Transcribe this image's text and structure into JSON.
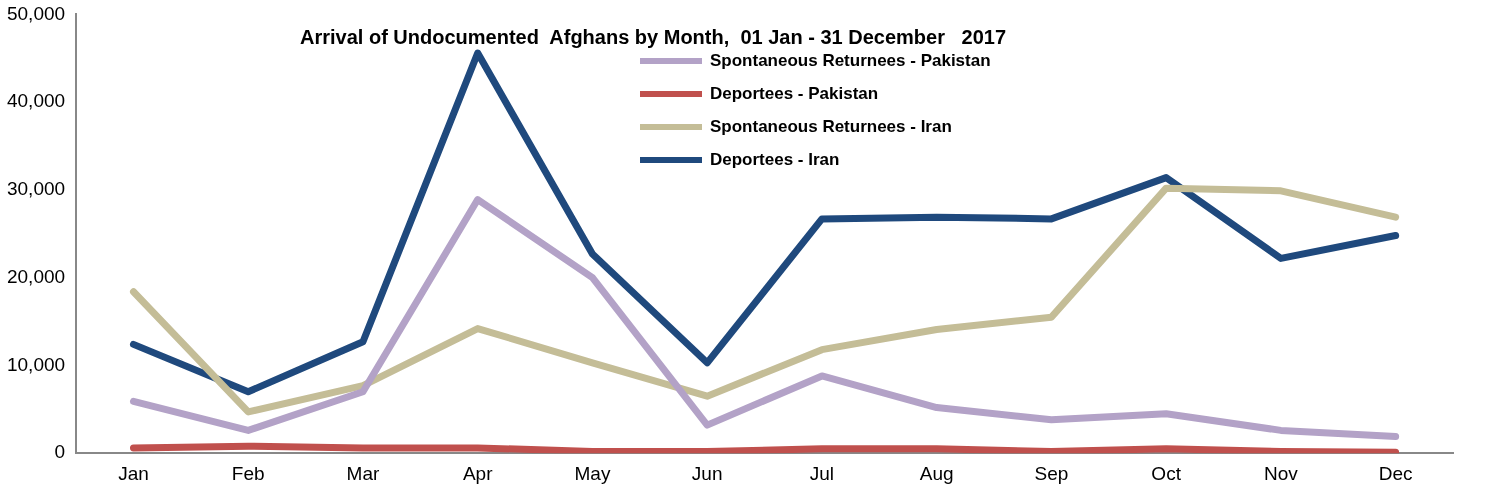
{
  "chart_data": {
    "type": "line",
    "title": "Arrival of Undocumented  Afghans by Month,  01 Jan - 31 December   2017",
    "categories": [
      "Jan",
      "Feb",
      "Mar",
      "Apr",
      "May",
      "Jun",
      "Jul",
      "Aug",
      "Sep",
      "Oct",
      "Nov",
      "Dec"
    ],
    "series": [
      {
        "name": "Spontaneous Returnees - Pakistan",
        "color": "#b3a2c7",
        "values": [
          5900,
          2600,
          7000,
          28900,
          20000,
          3200,
          8800,
          5200,
          3800,
          4500,
          2600,
          1900
        ]
      },
      {
        "name": "Deportees - Pakistan",
        "color": "#c0504d",
        "values": [
          600,
          800,
          600,
          600,
          200,
          200,
          500,
          500,
          200,
          500,
          200,
          100
        ]
      },
      {
        "name": "Spontaneous Returnees - Iran",
        "color": "#c4bd97",
        "values": [
          18400,
          4700,
          7700,
          14200,
          10300,
          6500,
          11800,
          14100,
          15500,
          30200,
          29900,
          26900
        ]
      },
      {
        "name": "Deportees - Iran",
        "color": "#1f497d",
        "values": [
          12400,
          7000,
          12700,
          45600,
          22700,
          10300,
          26700,
          26900,
          26700,
          31400,
          22200,
          24800
        ]
      }
    ],
    "ylim": [
      0,
      50000
    ],
    "yticks": [
      0,
      {
        "value": 10000,
        "label": "10,000"
      },
      {
        "value": 20000,
        "label": "20,000"
      },
      {
        "value": 30000,
        "label": "30,000"
      },
      {
        "value": 40000,
        "label": "40,000"
      },
      {
        "value": 50000,
        "label": "50,000"
      }
    ],
    "grid": false,
    "legend": "top",
    "line_style": "solid"
  }
}
